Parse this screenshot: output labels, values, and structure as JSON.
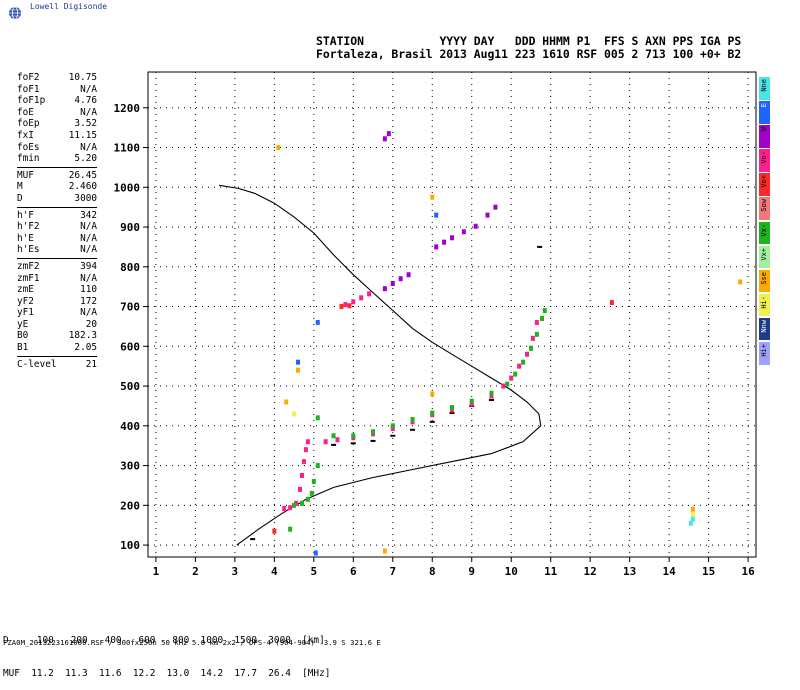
{
  "brand": {
    "name": "Lowell Digisonde",
    "logo_icon": "globe-icon"
  },
  "header": {
    "labels_line": "STATION           YYYY DAY   DDD HHMM P1  FFS S AXN PPS IGA PS",
    "values_line": "Fortaleza, Brasil 2013 Aug11 223 1610 RSF 005 2 713 100 +0+ B2"
  },
  "params": [
    [
      {
        "k": "foF2",
        "v": "10.75"
      },
      {
        "k": "foF1",
        "v": "N/A"
      },
      {
        "k": "foF1p",
        "v": "4.76"
      },
      {
        "k": "foE",
        "v": "N/A"
      },
      {
        "k": "foEp",
        "v": "3.52"
      },
      {
        "k": "fxI",
        "v": "11.15"
      },
      {
        "k": "foEs",
        "v": "N/A"
      },
      {
        "k": "fmin",
        "v": "5.20"
      }
    ],
    [
      {
        "k": "MUF",
        "v": "26.45"
      },
      {
        "k": "M",
        "v": "2.460"
      },
      {
        "k": "D",
        "v": "3000"
      }
    ],
    [
      {
        "k": "h'F",
        "v": "342"
      },
      {
        "k": "h'F2",
        "v": "N/A"
      },
      {
        "k": "h'E",
        "v": "N/A"
      },
      {
        "k": "h'Es",
        "v": "N/A"
      }
    ],
    [
      {
        "k": "zmF2",
        "v": "394"
      },
      {
        "k": "zmF1",
        "v": "N/A"
      },
      {
        "k": "zmE",
        "v": "110"
      },
      {
        "k": "yF2",
        "v": "172"
      },
      {
        "k": "yF1",
        "v": "N/A"
      },
      {
        "k": "yE",
        "v": "20"
      },
      {
        "k": "B0",
        "v": "182.3"
      },
      {
        "k": "B1",
        "v": "2.05"
      }
    ],
    [
      {
        "k": "C-level",
        "v": "21"
      }
    ]
  ],
  "legend": [
    {
      "label": "Nne",
      "color": "#46e6e6"
    },
    {
      "label": "E",
      "color": "#1e64ff"
    },
    {
      "label": "W",
      "color": "#a000c8"
    },
    {
      "label": "Vo-",
      "color": "#ff1e8c"
    },
    {
      "label": "Vo+",
      "color": "#ff2828"
    },
    {
      "label": "Sow",
      "color": "#f07878"
    },
    {
      "label": "Vx-",
      "color": "#1eb41e"
    },
    {
      "label": "Vx+",
      "color": "#a0f0a0"
    },
    {
      "label": "Sse",
      "color": "#ffaa00"
    },
    {
      "label": "Hi-",
      "color": "#f0f050"
    },
    {
      "label": "Nnw",
      "color": "#1e3c8c"
    },
    {
      "label": "Hi+",
      "color": "#a0a0ff"
    }
  ],
  "chart_data": {
    "type": "scatter",
    "title": "",
    "xlabel": "",
    "ylabel": "",
    "xlim": [
      0.8,
      16.2
    ],
    "ylim": [
      70,
      1290
    ],
    "grid": true,
    "x_ticks": [
      "1",
      "2",
      "3",
      "4",
      "5",
      "6",
      "7",
      "8",
      "9",
      "10",
      "11",
      "12",
      "13",
      "14",
      "15",
      "16"
    ],
    "y_ticks": [
      "100",
      "200",
      "300",
      "400",
      "500",
      "600",
      "700",
      "800",
      "900",
      "1000",
      "1100",
      "1200"
    ],
    "series": [
      {
        "name": "Vo-",
        "color": "#ff1e8c",
        "points": [
          [
            4.25,
            192
          ],
          [
            4.4,
            194
          ],
          [
            4.55,
            205
          ],
          [
            4.65,
            240
          ],
          [
            4.7,
            275
          ],
          [
            4.75,
            310
          ],
          [
            4.8,
            340
          ],
          [
            4.85,
            360
          ],
          [
            5.3,
            360
          ],
          [
            5.6,
            365
          ],
          [
            6.0,
            370
          ],
          [
            6.5,
            380
          ],
          [
            7.0,
            393
          ],
          [
            7.5,
            410
          ],
          [
            8.0,
            428
          ],
          [
            8.5,
            440
          ],
          [
            9.0,
            455
          ],
          [
            9.5,
            475
          ],
          [
            9.8,
            500
          ],
          [
            10.0,
            520
          ],
          [
            10.2,
            550
          ],
          [
            10.4,
            580
          ],
          [
            10.55,
            620
          ],
          [
            10.65,
            660
          ],
          [
            5.8,
            705
          ],
          [
            6.0,
            712
          ],
          [
            6.2,
            722
          ],
          [
            6.4,
            732
          ]
        ]
      },
      {
        "name": "Vx-",
        "color": "#1eb41e",
        "points": [
          [
            4.4,
            140
          ],
          [
            4.5,
            200
          ],
          [
            4.7,
            205
          ],
          [
            4.85,
            215
          ],
          [
            4.95,
            230
          ],
          [
            5.0,
            260
          ],
          [
            5.1,
            300
          ],
          [
            5.1,
            420
          ],
          [
            5.5,
            375
          ],
          [
            6.0,
            375
          ],
          [
            6.5,
            385
          ],
          [
            7.0,
            400
          ],
          [
            7.5,
            416
          ],
          [
            8.0,
            432
          ],
          [
            8.5,
            446
          ],
          [
            9.0,
            462
          ],
          [
            9.5,
            482
          ],
          [
            9.9,
            505
          ],
          [
            10.1,
            530
          ],
          [
            10.3,
            560
          ],
          [
            10.5,
            595
          ],
          [
            10.65,
            630
          ],
          [
            10.78,
            670
          ],
          [
            10.85,
            690
          ]
        ]
      },
      {
        "name": "W",
        "color": "#a000c8",
        "points": [
          [
            6.8,
            745
          ],
          [
            7.0,
            758
          ],
          [
            7.2,
            770
          ],
          [
            7.4,
            780
          ],
          [
            6.8,
            1122
          ],
          [
            6.9,
            1135
          ],
          [
            8.1,
            850
          ],
          [
            8.3,
            862
          ],
          [
            8.5,
            873
          ],
          [
            8.8,
            888
          ],
          [
            9.1,
            902
          ],
          [
            9.4,
            930
          ],
          [
            9.6,
            950
          ]
        ]
      },
      {
        "name": "Vo+",
        "color": "#ff2828",
        "points": [
          [
            4.0,
            135
          ],
          [
            5.7,
            700
          ],
          [
            5.9,
            702
          ],
          [
            12.55,
            710
          ]
        ]
      },
      {
        "name": "Sse",
        "color": "#ffaa00",
        "points": [
          [
            4.1,
            1100
          ],
          [
            8.0,
            975
          ],
          [
            4.6,
            540
          ],
          [
            4.3,
            460
          ],
          [
            8.0,
            480
          ],
          [
            14.6,
            190
          ],
          [
            15.8,
            762
          ],
          [
            6.8,
            85
          ]
        ]
      },
      {
        "name": "E",
        "color": "#1e64ff",
        "points": [
          [
            4.6,
            560
          ],
          [
            5.1,
            660
          ],
          [
            8.1,
            930
          ],
          [
            5.05,
            80
          ]
        ]
      },
      {
        "name": "Nne",
        "color": "#46e6e6",
        "points": [
          [
            14.55,
            155
          ],
          [
            14.6,
            165
          ]
        ]
      },
      {
        "name": "Hi-",
        "color": "#f0f050",
        "points": [
          [
            14.6,
            178
          ],
          [
            4.5,
            430
          ]
        ]
      }
    ],
    "echo_traces": [
      {
        "name": "background",
        "color": "#000000",
        "points": [
          [
            5.5,
            352
          ],
          [
            6.0,
            356
          ],
          [
            6.5,
            362
          ],
          [
            7.0,
            375
          ],
          [
            7.5,
            390
          ],
          [
            8.0,
            410
          ],
          [
            8.5,
            432
          ],
          [
            9.0,
            450
          ],
          [
            9.5,
            465
          ],
          [
            10.72,
            850
          ],
          [
            3.45,
            115
          ]
        ]
      }
    ],
    "profile_line": {
      "color": "#000000",
      "points": [
        [
          3.05,
          100
        ],
        [
          3.6,
          140
        ],
        [
          4.2,
          180
        ],
        [
          4.8,
          215
        ],
        [
          5.5,
          245
        ],
        [
          6.5,
          270
        ],
        [
          7.5,
          290
        ],
        [
          8.5,
          310
        ],
        [
          9.5,
          330
        ],
        [
          10.3,
          360
        ],
        [
          10.75,
          400
        ],
        [
          10.7,
          430
        ],
        [
          10.4,
          460
        ],
        [
          10.0,
          490
        ],
        [
          9.5,
          520
        ],
        [
          9.0,
          550
        ],
        [
          8.5,
          580
        ],
        [
          8.0,
          610
        ],
        [
          7.5,
          645
        ],
        [
          7.0,
          690
        ],
        [
          6.5,
          735
        ],
        [
          6.0,
          780
        ],
        [
          5.5,
          830
        ],
        [
          5.0,
          885
        ],
        [
          4.5,
          925
        ],
        [
          4.0,
          960
        ],
        [
          3.5,
          985
        ],
        [
          3.1,
          997
        ],
        [
          2.6,
          1005
        ]
      ]
    }
  },
  "muf_table": {
    "row_d": "D     100   200   400   600   800  1000  1500  3000  [km]",
    "row_muf": "MUF  11.2  11.3  11.6  12.2  13.0  14.2  17.7  26.4  [MHz]"
  },
  "footer": "FZA0M_2013223161000.RSF / 300fx256h 50 kHz 5.0 km 2x2 / DPS-4 (904-904)  3.9 S 321.6 E"
}
